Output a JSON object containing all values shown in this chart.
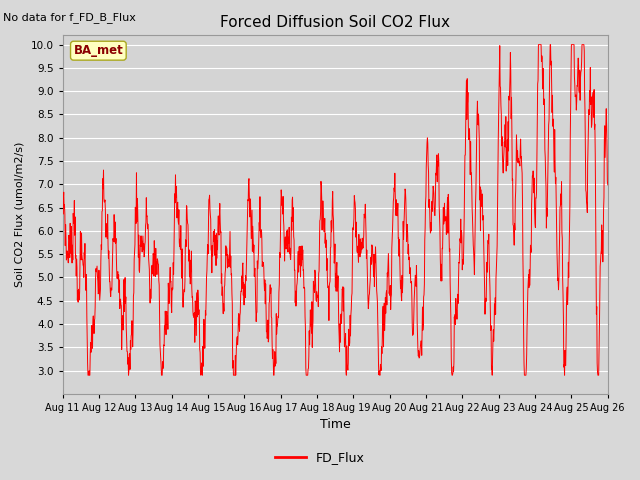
{
  "title": "Forced Diffusion Soil CO2 Flux",
  "xlabel": "Time",
  "ylabel": "Soil CO2 Flux (umol/m2/s)",
  "no_data_label": "No data for f_FD_B_Flux",
  "site_label": "BA_met",
  "legend_label": "FD_Flux",
  "line_color": "#ff0000",
  "ylim": [
    2.5,
    10.2
  ],
  "yticks": [
    3.0,
    3.5,
    4.0,
    4.5,
    5.0,
    5.5,
    6.0,
    6.5,
    7.0,
    7.5,
    8.0,
    8.5,
    9.0,
    9.5,
    10.0
  ],
  "x_tick_labels": [
    "Aug 11",
    "Aug 12",
    "Aug 13",
    "Aug 14",
    "Aug 15",
    "Aug 16",
    "Aug 17",
    "Aug 18",
    "Aug 19",
    "Aug 20",
    "Aug 21",
    "Aug 22",
    "Aug 23",
    "Aug 24",
    "Aug 25",
    "Aug 26"
  ],
  "background_color": "#d8d8d8",
  "plot_bg_color": "#d4d4d4",
  "grid_color": "#ffffff",
  "figsize": [
    6.4,
    4.8
  ],
  "dpi": 100
}
